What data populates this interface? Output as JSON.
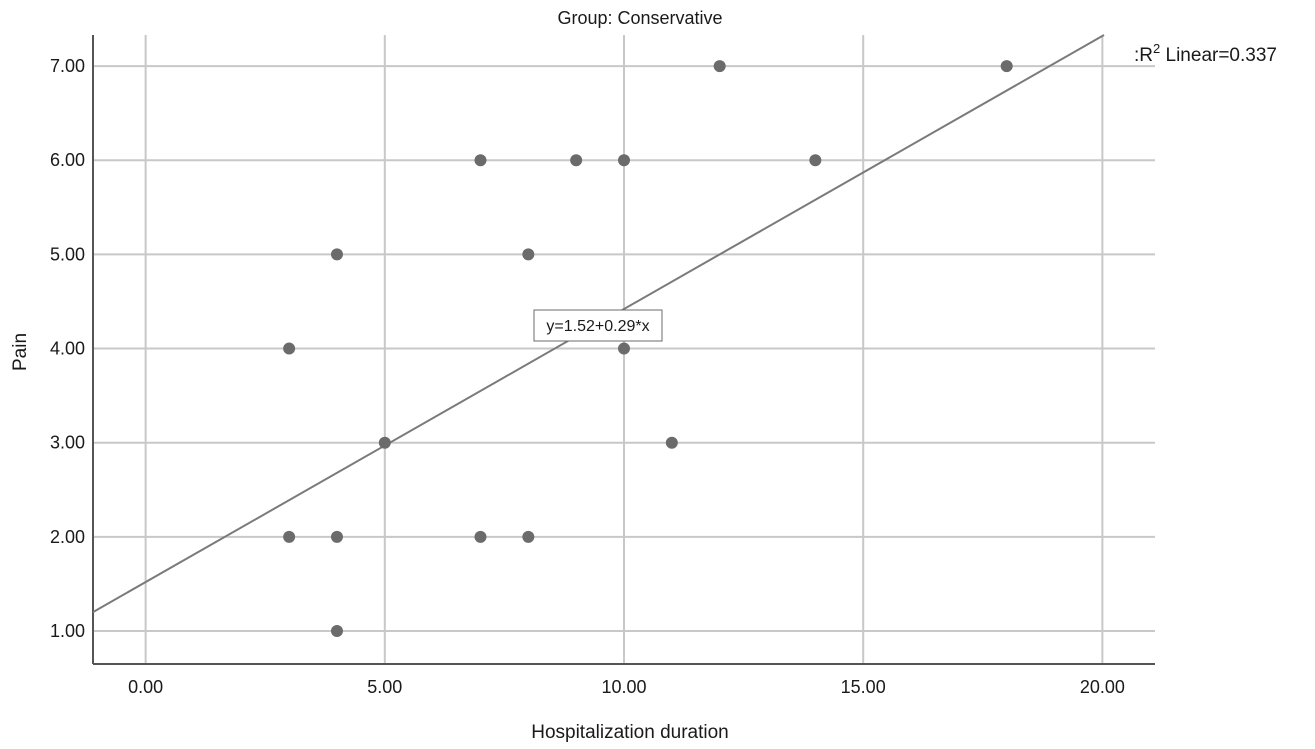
{
  "chart_data": {
    "type": "scatter",
    "title": "Group: Conservative",
    "xlabel": "Hospitalization duration",
    "ylabel": "Pain",
    "xlim": [
      -1.1,
      21.1
    ],
    "ylim": [
      0.65,
      7.33
    ],
    "x_ticks": [
      0,
      5,
      10,
      15,
      20
    ],
    "x_tick_labels": [
      "0.00",
      "5.00",
      "10.00",
      "15.00",
      "20.00"
    ],
    "y_ticks": [
      1,
      2,
      3,
      4,
      5,
      6,
      7
    ],
    "y_tick_labels": [
      "1.00",
      "2.00",
      "3.00",
      "4.00",
      "5.00",
      "6.00",
      "7.00"
    ],
    "grid": true,
    "points": [
      {
        "x": 12,
        "y": 7
      },
      {
        "x": 18,
        "y": 7
      },
      {
        "x": 7,
        "y": 6
      },
      {
        "x": 9,
        "y": 6
      },
      {
        "x": 10,
        "y": 6
      },
      {
        "x": 14,
        "y": 6
      },
      {
        "x": 4,
        "y": 5
      },
      {
        "x": 8,
        "y": 5
      },
      {
        "x": 3,
        "y": 4
      },
      {
        "x": 10,
        "y": 4
      },
      {
        "x": 5,
        "y": 3
      },
      {
        "x": 11,
        "y": 3
      },
      {
        "x": 3,
        "y": 2
      },
      {
        "x": 4,
        "y": 2
      },
      {
        "x": 7,
        "y": 2
      },
      {
        "x": 8,
        "y": 2
      },
      {
        "x": 4,
        "y": 1
      }
    ],
    "fit_line": {
      "intercept": 1.52,
      "slope": 0.29
    },
    "fit_equation_label": "y=1.52+0.29*x",
    "r2_label": "Linear=0.337",
    "colors": {
      "points": "#6b6b6b",
      "fit_line": "#7a7a7a",
      "grid": "#c8c8c8",
      "axis": "#555555"
    }
  }
}
